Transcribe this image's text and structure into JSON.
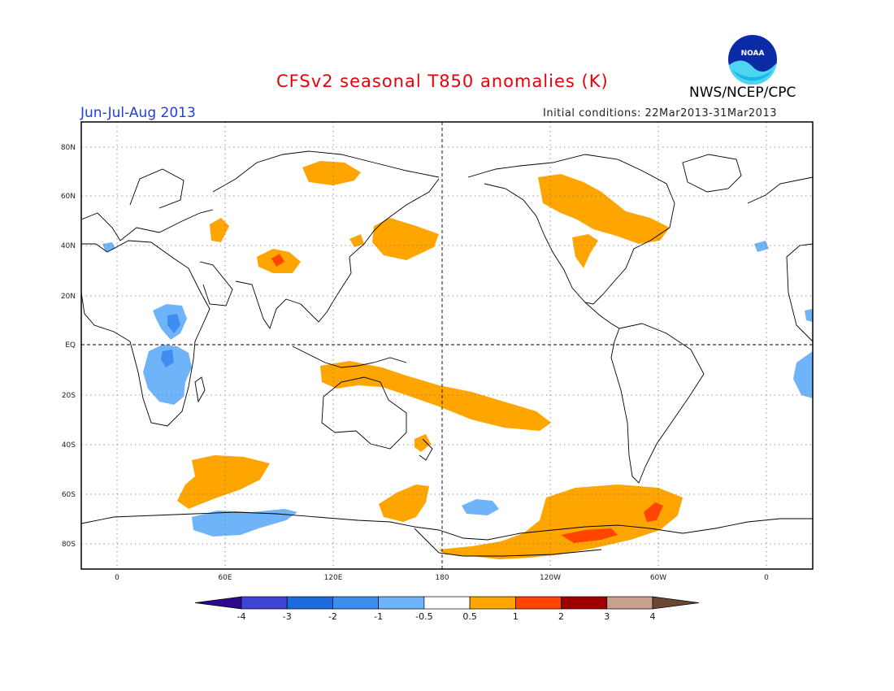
{
  "title": "CFSv2 seasonal T850 anomalies (K)",
  "season": "Jun-Jul-Aug 2013",
  "initial_conditions": "Initial conditions: 22Mar2013-31Mar2013",
  "agency": "NWS/NCEP/CPC",
  "logo_text": "NOAA",
  "colors": {
    "title": "#e8000b",
    "season": "#1f3fe0",
    "warm_05_1": "#ffa500",
    "warm_1_2": "#ff4500",
    "cool_m1_m05": "#6fb4f8",
    "cool_m2_m1": "#3d8ef0"
  },
  "map": {
    "lat_labels": [
      "80N",
      "60N",
      "40N",
      "20N",
      "EQ",
      "20S",
      "40S",
      "60S",
      "80S"
    ],
    "lon_labels": [
      "0",
      "60E",
      "120E",
      "180",
      "120W",
      "60W",
      "0"
    ]
  },
  "colorbar": {
    "labels": [
      "-4",
      "-3",
      "-2",
      "-1",
      "-0.5",
      "0.5",
      "1",
      "2",
      "3",
      "4"
    ],
    "colors": [
      "#2b0a8e",
      "#3f44d8",
      "#1e6be0",
      "#3d8ef0",
      "#6fb4f8",
      "#ffffff",
      "#ffa500",
      "#ff4500",
      "#a10000",
      "#c9a08e",
      "#6b4633"
    ]
  }
}
